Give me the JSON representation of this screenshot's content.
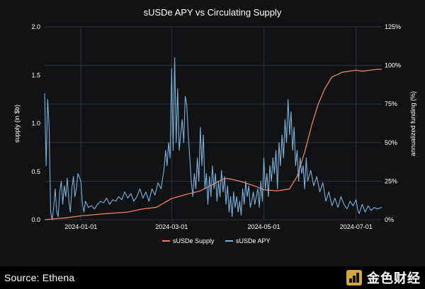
{
  "chart_data": {
    "type": "line",
    "title": "sUSDe APY vs Circulating Supply",
    "x_ticks": [
      "2024-01-01",
      "2024-03-01",
      "2024-05-01",
      "2024-07-01"
    ],
    "x_range": [
      "2023-12-08",
      "2024-07-18"
    ],
    "y_left": {
      "label": "supply (in $b)",
      "range": [
        0,
        2.0
      ],
      "ticks": [
        "0.0",
        "0.5",
        "1.0",
        "1.5",
        "2.0"
      ]
    },
    "y_right": {
      "label": "annualized funding (%)",
      "range": [
        0,
        125
      ],
      "ticks": [
        "0%",
        "25%",
        "50%",
        "75%",
        "100%",
        "125%"
      ]
    },
    "grid": true,
    "legend_position": "bottom-center",
    "series": [
      {
        "name": "sUSDe Supply",
        "axis": "left",
        "color": "#e8806a",
        "points": [
          [
            "2023-12-08",
            0.0
          ],
          [
            "2023-12-15",
            0.01
          ],
          [
            "2023-12-22",
            0.02
          ],
          [
            "2024-01-01",
            0.04
          ],
          [
            "2024-01-15",
            0.06
          ],
          [
            "2024-02-01",
            0.08
          ],
          [
            "2024-02-10",
            0.11
          ],
          [
            "2024-02-20",
            0.13
          ],
          [
            "2024-03-01",
            0.22
          ],
          [
            "2024-03-10",
            0.26
          ],
          [
            "2024-03-20",
            0.3
          ],
          [
            "2024-03-30",
            0.38
          ],
          [
            "2024-04-05",
            0.43
          ],
          [
            "2024-04-10",
            0.42
          ],
          [
            "2024-04-15",
            0.4
          ],
          [
            "2024-04-25",
            0.35
          ],
          [
            "2024-05-01",
            0.31
          ],
          [
            "2024-05-10",
            0.3
          ],
          [
            "2024-05-18",
            0.32
          ],
          [
            "2024-05-23",
            0.45
          ],
          [
            "2024-05-28",
            0.7
          ],
          [
            "2024-06-02",
            1.0
          ],
          [
            "2024-06-06",
            1.2
          ],
          [
            "2024-06-10",
            1.35
          ],
          [
            "2024-06-15",
            1.48
          ],
          [
            "2024-06-22",
            1.53
          ],
          [
            "2024-07-01",
            1.55
          ],
          [
            "2024-07-05",
            1.54
          ],
          [
            "2024-07-10",
            1.55
          ],
          [
            "2024-07-15",
            1.56
          ],
          [
            "2024-07-18",
            1.56
          ]
        ]
      },
      {
        "name": "sUSDe APY",
        "axis": "right",
        "color": "#7cb0d8",
        "points": [
          [
            "2023-12-08",
            82
          ],
          [
            "2023-12-09",
            35
          ],
          [
            "2023-12-10",
            78
          ],
          [
            "2023-12-11",
            60
          ],
          [
            "2023-12-12",
            5
          ],
          [
            "2023-12-13",
            0
          ],
          [
            "2023-12-14",
            8
          ],
          [
            "2023-12-15",
            20
          ],
          [
            "2023-12-16",
            5
          ],
          [
            "2023-12-17",
            2
          ],
          [
            "2023-12-18",
            18
          ],
          [
            "2023-12-19",
            25
          ],
          [
            "2023-12-20",
            10
          ],
          [
            "2023-12-21",
            22
          ],
          [
            "2023-12-22",
            15
          ],
          [
            "2023-12-23",
            27
          ],
          [
            "2023-12-24",
            12
          ],
          [
            "2023-12-25",
            5
          ],
          [
            "2023-12-26",
            20
          ],
          [
            "2023-12-27",
            28
          ],
          [
            "2023-12-28",
            15
          ],
          [
            "2023-12-29",
            20
          ],
          [
            "2023-12-30",
            30
          ],
          [
            "2024-01-01",
            25
          ],
          [
            "2024-01-02",
            10
          ],
          [
            "2024-01-03",
            5
          ],
          [
            "2024-01-04",
            12
          ],
          [
            "2024-01-06",
            8
          ],
          [
            "2024-01-08",
            9
          ],
          [
            "2024-01-10",
            7
          ],
          [
            "2024-01-12",
            10
          ],
          [
            "2024-01-14",
            12
          ],
          [
            "2024-01-16",
            11
          ],
          [
            "2024-01-18",
            14
          ],
          [
            "2024-01-20",
            10
          ],
          [
            "2024-01-22",
            13
          ],
          [
            "2024-01-24",
            12
          ],
          [
            "2024-01-26",
            15
          ],
          [
            "2024-01-28",
            13
          ],
          [
            "2024-01-30",
            18
          ],
          [
            "2024-02-01",
            14
          ],
          [
            "2024-02-03",
            17
          ],
          [
            "2024-02-05",
            12
          ],
          [
            "2024-02-07",
            15
          ],
          [
            "2024-02-09",
            20
          ],
          [
            "2024-02-11",
            14
          ],
          [
            "2024-02-13",
            18
          ],
          [
            "2024-02-15",
            12
          ],
          [
            "2024-02-17",
            20
          ],
          [
            "2024-02-19",
            16
          ],
          [
            "2024-02-21",
            24
          ],
          [
            "2024-02-23",
            20
          ],
          [
            "2024-02-25",
            33
          ],
          [
            "2024-02-26",
            45
          ],
          [
            "2024-02-27",
            35
          ],
          [
            "2024-02-28",
            50
          ],
          [
            "2024-02-29",
            40
          ],
          [
            "2024-03-01",
            98
          ],
          [
            "2024-03-02",
            45
          ],
          [
            "2024-03-03",
            105
          ],
          [
            "2024-03-04",
            50
          ],
          [
            "2024-03-05",
            85
          ],
          [
            "2024-03-06",
            45
          ],
          [
            "2024-03-07",
            55
          ],
          [
            "2024-03-08",
            65
          ],
          [
            "2024-03-09",
            50
          ],
          [
            "2024-03-10",
            80
          ],
          [
            "2024-03-11",
            75
          ],
          [
            "2024-03-12",
            55
          ],
          [
            "2024-03-13",
            40
          ],
          [
            "2024-03-14",
            25
          ],
          [
            "2024-03-15",
            15
          ],
          [
            "2024-03-16",
            30
          ],
          [
            "2024-03-17",
            20
          ],
          [
            "2024-03-18",
            40
          ],
          [
            "2024-03-19",
            25
          ],
          [
            "2024-03-20",
            60
          ],
          [
            "2024-03-21",
            35
          ],
          [
            "2024-03-22",
            55
          ],
          [
            "2024-03-23",
            20
          ],
          [
            "2024-03-24",
            30
          ],
          [
            "2024-03-25",
            10
          ],
          [
            "2024-03-26",
            28
          ],
          [
            "2024-03-27",
            15
          ],
          [
            "2024-03-28",
            35
          ],
          [
            "2024-03-29",
            20
          ],
          [
            "2024-03-30",
            30
          ],
          [
            "2024-03-31",
            12
          ],
          [
            "2024-04-01",
            25
          ],
          [
            "2024-04-02",
            15
          ],
          [
            "2024-04-03",
            32
          ],
          [
            "2024-04-04",
            18
          ],
          [
            "2024-04-05",
            28
          ],
          [
            "2024-04-06",
            10
          ],
          [
            "2024-04-07",
            22
          ],
          [
            "2024-04-08",
            5
          ],
          [
            "2024-04-09",
            15
          ],
          [
            "2024-04-10",
            2
          ],
          [
            "2024-04-11",
            18
          ],
          [
            "2024-04-12",
            8
          ],
          [
            "2024-04-13",
            15
          ],
          [
            "2024-04-14",
            5
          ],
          [
            "2024-04-15",
            12
          ],
          [
            "2024-04-16",
            3
          ],
          [
            "2024-04-17",
            20
          ],
          [
            "2024-04-18",
            10
          ],
          [
            "2024-04-19",
            25
          ],
          [
            "2024-04-20",
            15
          ],
          [
            "2024-04-21",
            22
          ],
          [
            "2024-04-22",
            8
          ],
          [
            "2024-04-23",
            12
          ],
          [
            "2024-04-24",
            18
          ],
          [
            "2024-04-25",
            10
          ],
          [
            "2024-04-26",
            15
          ],
          [
            "2024-04-27",
            20
          ],
          [
            "2024-04-28",
            8
          ],
          [
            "2024-04-29",
            25
          ],
          [
            "2024-04-30",
            12
          ],
          [
            "2024-05-01",
            40
          ],
          [
            "2024-05-02",
            20
          ],
          [
            "2024-05-03",
            30
          ],
          [
            "2024-05-04",
            15
          ],
          [
            "2024-05-05",
            35
          ],
          [
            "2024-05-06",
            25
          ],
          [
            "2024-05-07",
            40
          ],
          [
            "2024-05-08",
            30
          ],
          [
            "2024-05-09",
            45
          ],
          [
            "2024-05-10",
            20
          ],
          [
            "2024-05-11",
            50
          ],
          [
            "2024-05-12",
            35
          ],
          [
            "2024-05-13",
            55
          ],
          [
            "2024-05-14",
            40
          ],
          [
            "2024-05-15",
            65
          ],
          [
            "2024-05-16",
            50
          ],
          [
            "2024-05-17",
            78
          ],
          [
            "2024-05-18",
            55
          ],
          [
            "2024-05-19",
            70
          ],
          [
            "2024-05-20",
            45
          ],
          [
            "2024-05-21",
            60
          ],
          [
            "2024-05-22",
            35
          ],
          [
            "2024-05-23",
            45
          ],
          [
            "2024-05-24",
            25
          ],
          [
            "2024-05-25",
            40
          ],
          [
            "2024-05-26",
            30
          ],
          [
            "2024-05-27",
            35
          ],
          [
            "2024-05-28",
            20
          ],
          [
            "2024-05-29",
            40
          ],
          [
            "2024-05-30",
            25
          ],
          [
            "2024-06-01",
            32
          ],
          [
            "2024-06-03",
            22
          ],
          [
            "2024-06-05",
            28
          ],
          [
            "2024-06-07",
            18
          ],
          [
            "2024-06-09",
            24
          ],
          [
            "2024-06-11",
            12
          ],
          [
            "2024-06-13",
            18
          ],
          [
            "2024-06-15",
            9
          ],
          [
            "2024-06-17",
            14
          ],
          [
            "2024-06-19",
            8
          ],
          [
            "2024-06-21",
            15
          ],
          [
            "2024-06-23",
            10
          ],
          [
            "2024-06-25",
            7
          ],
          [
            "2024-06-27",
            12
          ],
          [
            "2024-06-29",
            9
          ],
          [
            "2024-07-01",
            13
          ],
          [
            "2024-07-02",
            7
          ],
          [
            "2024-07-03",
            4
          ],
          [
            "2024-07-05",
            10
          ],
          [
            "2024-07-07",
            5
          ],
          [
            "2024-07-09",
            9
          ],
          [
            "2024-07-11",
            6
          ],
          [
            "2024-07-13",
            8
          ],
          [
            "2024-07-15",
            7
          ],
          [
            "2024-07-18",
            8
          ]
        ]
      }
    ]
  },
  "footer": {
    "source": "Source: Ethena",
    "brand": "金色财经"
  }
}
